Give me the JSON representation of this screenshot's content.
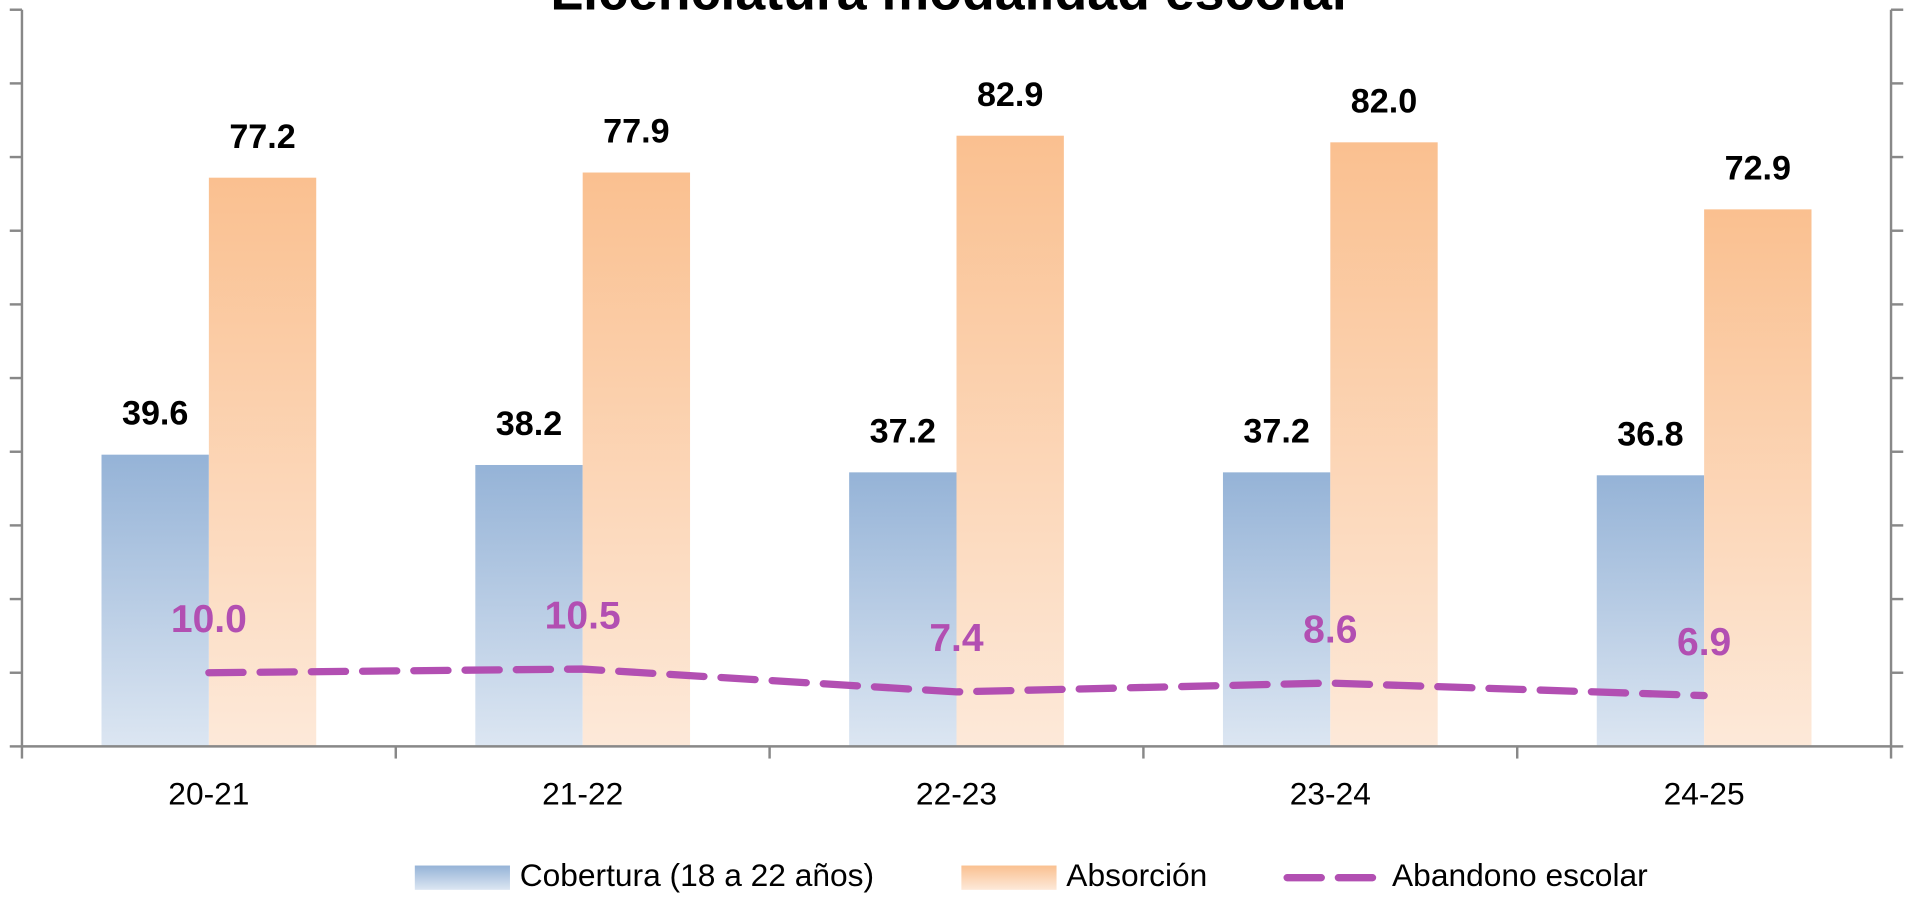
{
  "chart_data": {
    "type": "bar",
    "title": "Licenciatura modalidad escolar",
    "categories": [
      "20-21",
      "21-22",
      "22-23",
      "23-24",
      "24-25"
    ],
    "series": [
      {
        "name": "Cobertura (18 a 22 años)",
        "type": "bar",
        "color": "#95b3d7",
        "values": [
          39.6,
          38.2,
          37.2,
          37.2,
          36.8
        ],
        "value_labels": [
          "39.6",
          "38.2",
          "37.2",
          "37.2",
          "36.8"
        ]
      },
      {
        "name": "Absorción",
        "type": "bar",
        "color": "#fac090",
        "values": [
          77.2,
          77.9,
          82.9,
          82.0,
          72.9
        ],
        "value_labels": [
          "77.2",
          "77.9",
          "82.9",
          "82.0",
          "72.9"
        ]
      },
      {
        "name": "Abandono escolar",
        "type": "line",
        "color": "#b24fb2",
        "values": [
          10.0,
          10.5,
          7.4,
          8.6,
          6.9
        ],
        "value_labels": [
          "10.0",
          "10.5",
          "7.4",
          "8.6",
          "6.9"
        ]
      }
    ],
    "ylim": [
      0,
      100
    ],
    "yticks": [
      0,
      10,
      20,
      30,
      40,
      50,
      60,
      70,
      80,
      90,
      100
    ],
    "grid": false,
    "legend": "bottom"
  }
}
